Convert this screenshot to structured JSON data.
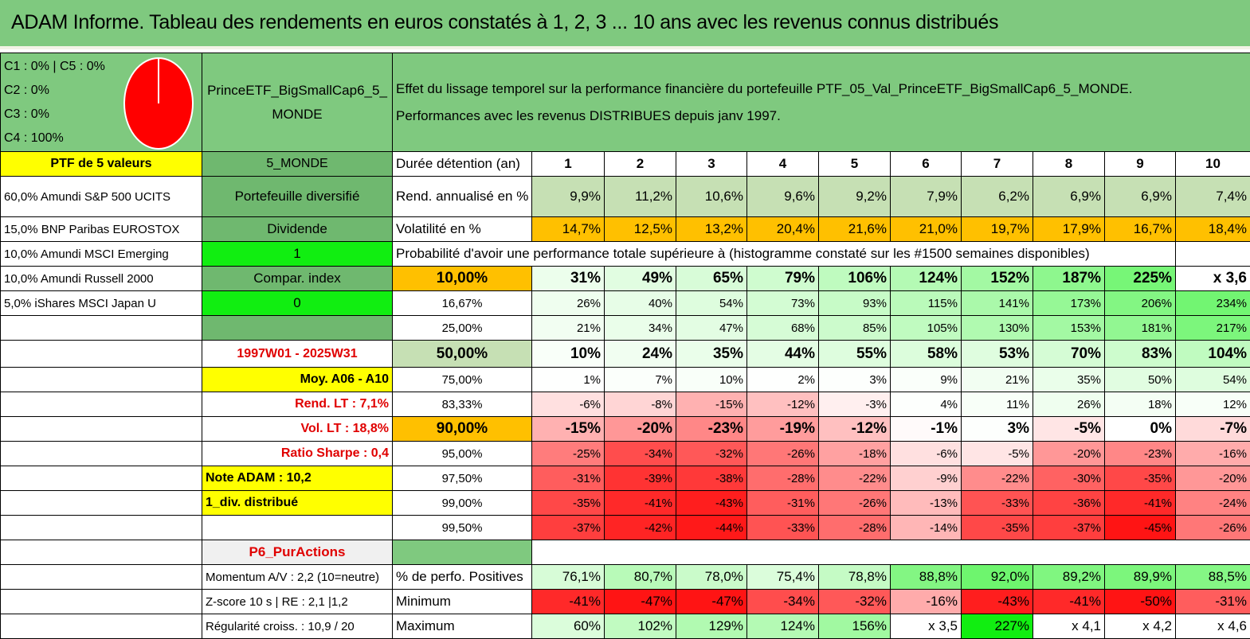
{
  "title": "ADAM Informe. Tableau des rendements en euros constatés à 1, 2, 3 ... 10 ans avec les revenus connus distribués",
  "legend": [
    "C1 : 0% | C5 : 0%",
    "C2 : 0%",
    "C3 : 0%",
    "C4 : 100%"
  ],
  "pie": {
    "color": "#ff0000",
    "stroke": "#ffffff",
    "slices": [
      {
        "label": "C4",
        "value": 100
      }
    ]
  },
  "fund_name": "PrinceETF_BigSmallCap6_5_ MONDE",
  "fund_name_l1": "PrinceETF_BigSmallCap6_5_",
  "fund_name_l2": "MONDE",
  "description_l1": "Effet du lissage temporel sur la performance financière du portefeuille PTF_05_Val_PrinceETF_BigSmallCap6_5_MONDE.",
  "description_l2": "Performances avec les revenus DISTRIBUES depuis janv 1997.",
  "holdings_header": "PTF de 5 valeurs",
  "holdings": [
    "60,0% Amundi S&P 500 UCITS",
    "15,0% BNP Paribas EUROSTOX",
    "10,0% Amundi MSCI Emerging",
    "10,0% Amundi Russell 2000",
    "5,0% iShares MSCI Japan U"
  ],
  "side": {
    "region": "5_MONDE",
    "diversified": "Portefeuille diversifié",
    "dividend_label": "Dividende",
    "dividend_value": "1",
    "compar_label": "Compar. index",
    "compar_value": "0",
    "period": "1997W01 - 2025W31",
    "moy": "Moy. A06 - A10",
    "rend_lt": "Rend. LT : 7,1%",
    "vol_lt": "Vol. LT : 18,8%",
    "sharpe": "Ratio Sharpe : 0,4",
    "note": "Note ADAM : 10,2",
    "distrib": "1_div. distribué",
    "category": "P6_PurActions",
    "momentum": "Momentum A/V : 2,2 (10=neutre)",
    "zscore": "Z-score 10 s | RE : 2,1 |1,2",
    "regularite": "Régularité croiss. : 10,9 / 20"
  },
  "duration_label": "Durée détention (an)",
  "years": [
    "1",
    "2",
    "3",
    "4",
    "5",
    "6",
    "7",
    "8",
    "9",
    "10"
  ],
  "rend_label": "Rend. annualisé en %",
  "rend": [
    "9,9%",
    "11,2%",
    "10,6%",
    "9,6%",
    "9,2%",
    "7,9%",
    "6,2%",
    "6,9%",
    "6,9%",
    "7,4%"
  ],
  "vol_label": "Volatilité en %",
  "vol": [
    "14,7%",
    "12,5%",
    "13,2%",
    "20,4%",
    "21,6%",
    "21,0%",
    "19,7%",
    "17,9%",
    "16,7%",
    "18,4%"
  ],
  "prob_title": "Probabilité d'avoir une performance totale supérieure à (histogramme constaté sur les #1500 semaines disponibles)",
  "prob_rows": [
    {
      "pct": "10,00%",
      "vals": [
        "31%",
        "49%",
        "65%",
        "79%",
        "106%",
        "124%",
        "152%",
        "187%",
        "225%",
        "x 3,6"
      ]
    },
    {
      "pct": "16,67%",
      "vals": [
        "26%",
        "40%",
        "54%",
        "73%",
        "93%",
        "115%",
        "141%",
        "173%",
        "206%",
        "234%"
      ]
    },
    {
      "pct": "25,00%",
      "vals": [
        "21%",
        "34%",
        "47%",
        "68%",
        "85%",
        "105%",
        "130%",
        "153%",
        "181%",
        "217%"
      ]
    },
    {
      "pct": "50,00%",
      "vals": [
        "10%",
        "24%",
        "35%",
        "44%",
        "55%",
        "58%",
        "53%",
        "70%",
        "83%",
        "104%"
      ]
    },
    {
      "pct": "75,00%",
      "vals": [
        "1%",
        "7%",
        "10%",
        "2%",
        "3%",
        "9%",
        "21%",
        "35%",
        "50%",
        "54%"
      ]
    },
    {
      "pct": "83,33%",
      "vals": [
        "-6%",
        "-8%",
        "-15%",
        "-12%",
        "-3%",
        "4%",
        "11%",
        "26%",
        "18%",
        "12%"
      ]
    },
    {
      "pct": "90,00%",
      "vals": [
        "-15%",
        "-20%",
        "-23%",
        "-19%",
        "-12%",
        "-1%",
        "3%",
        "-5%",
        "0%",
        "-7%"
      ]
    },
    {
      "pct": "95,00%",
      "vals": [
        "-25%",
        "-34%",
        "-32%",
        "-26%",
        "-18%",
        "-6%",
        "-5%",
        "-20%",
        "-23%",
        "-16%"
      ]
    },
    {
      "pct": "97,50%",
      "vals": [
        "-31%",
        "-39%",
        "-38%",
        "-28%",
        "-22%",
        "-9%",
        "-22%",
        "-30%",
        "-35%",
        "-20%"
      ]
    },
    {
      "pct": "99,00%",
      "vals": [
        "-35%",
        "-41%",
        "-43%",
        "-31%",
        "-26%",
        "-13%",
        "-33%",
        "-36%",
        "-41%",
        "-24%"
      ]
    },
    {
      "pct": "99,50%",
      "vals": [
        "-37%",
        "-42%",
        "-44%",
        "-33%",
        "-28%",
        "-14%",
        "-35%",
        "-37%",
        "-45%",
        "-26%"
      ]
    }
  ],
  "stats": [
    {
      "label": "% de perfo. Positives",
      "vals": [
        "76,1%",
        "80,7%",
        "78,0%",
        "75,4%",
        "78,8%",
        "88,8%",
        "92,0%",
        "89,2%",
        "89,9%",
        "88,5%"
      ]
    },
    {
      "label": "Minimum",
      "vals": [
        "-41%",
        "-47%",
        "-47%",
        "-34%",
        "-32%",
        "-16%",
        "-43%",
        "-41%",
        "-50%",
        "-31%"
      ]
    },
    {
      "label": "Maximum",
      "vals": [
        "60%",
        "102%",
        "129%",
        "124%",
        "156%",
        "x 3,5",
        "227%",
        "x 4,1",
        "x 4,2",
        "x 4,6"
      ]
    }
  ],
  "colors": {
    "header_green": "#7fc97f",
    "yellow": "#ffff00",
    "orange": "#ffc000",
    "bright_green": "#11ee11",
    "red": "#ff0000"
  }
}
